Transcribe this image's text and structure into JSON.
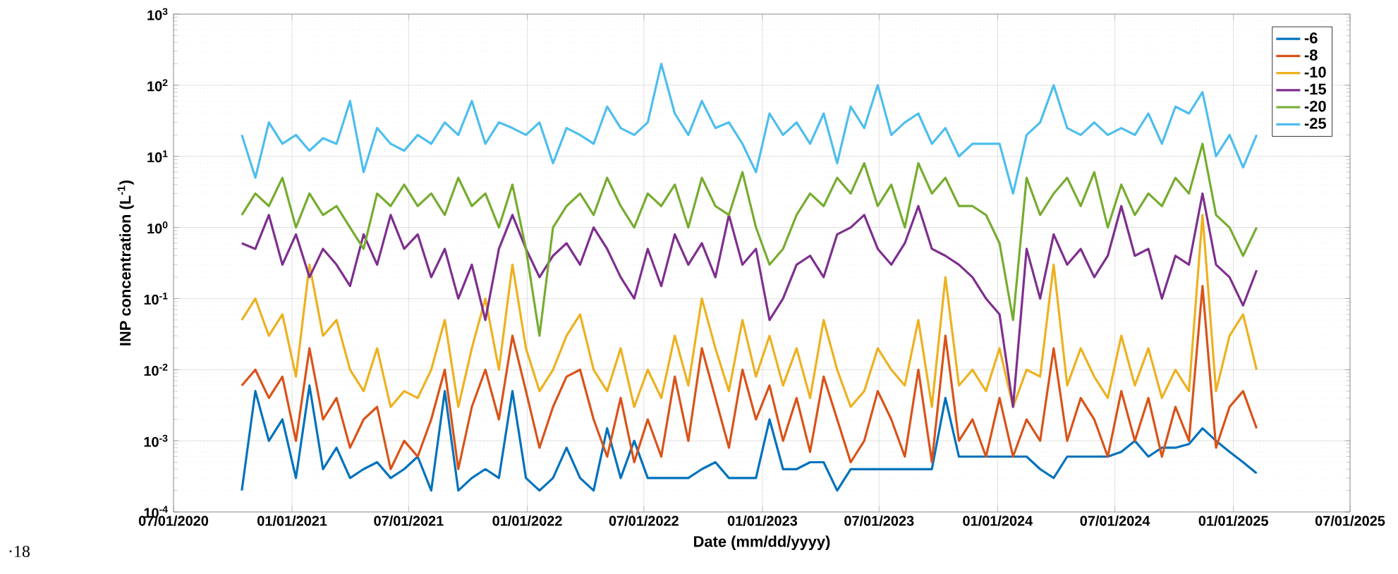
{
  "chart_data": {
    "type": "line",
    "xlabel": "Date (mm/dd/yyyy)",
    "ylabel": "INP concentration (L$^{-1}$)",
    "log": "y",
    "grid": true,
    "legend": "top right",
    "marker": "none",
    "line_style": "solid",
    "xlim": [
      "2020-07-01",
      "2025-07-01"
    ],
    "xticks": [
      {
        "value": "2020-07-01",
        "label": "07/01/2020"
      },
      {
        "value": "2021-01-01",
        "label": "01/01/2021"
      },
      {
        "value": "2021-07-01",
        "label": "07/01/2021"
      },
      {
        "value": "2022-01-01",
        "label": "01/01/2022"
      },
      {
        "value": "2022-07-01",
        "label": "07/01/2022"
      },
      {
        "value": "2023-01-01",
        "label": "01/01/2023"
      },
      {
        "value": "2023-07-01",
        "label": "07/01/2023"
      },
      {
        "value": "2024-01-01",
        "label": "01/01/2024"
      },
      {
        "value": "2024-07-01",
        "label": "07/01/2024"
      },
      {
        "value": "2025-01-01",
        "label": "01/01/2025"
      },
      {
        "value": "2025-07-01",
        "label": "07/01/2025"
      }
    ],
    "ylim": [
      0.0001,
      1000
    ],
    "yticks": [
      {
        "value": 0.0001,
        "label": "10$^{-4}$"
      },
      {
        "value": 0.001,
        "label": "10$^{-3}$"
      },
      {
        "value": 0.01,
        "label": "10$^{-2}$"
      },
      {
        "value": 0.1,
        "label": "10$^{-1}$"
      },
      {
        "value": 1,
        "label": "10$^{0}$"
      },
      {
        "value": 10,
        "label": "10$^{1}$"
      },
      {
        "value": 100,
        "label": "10$^{2}$"
      },
      {
        "value": 1000,
        "label": "10$^{3}$"
      }
    ],
    "annotations": [
      "·18"
    ],
    "x": [
      "2020-10-15",
      "2020-11-05",
      "2020-11-26",
      "2020-12-17",
      "2021-01-07",
      "2021-01-28",
      "2021-02-18",
      "2021-03-11",
      "2021-04-01",
      "2021-04-22",
      "2021-05-13",
      "2021-06-03",
      "2021-06-24",
      "2021-07-15",
      "2021-08-05",
      "2021-08-26",
      "2021-09-16",
      "2021-10-07",
      "2021-10-28",
      "2021-11-18",
      "2021-12-09",
      "2021-12-30",
      "2022-01-20",
      "2022-02-10",
      "2022-03-03",
      "2022-03-24",
      "2022-04-14",
      "2022-05-05",
      "2022-05-26",
      "2022-06-16",
      "2022-07-07",
      "2022-07-28",
      "2022-08-18",
      "2022-09-08",
      "2022-09-29",
      "2022-10-20",
      "2022-11-10",
      "2022-12-01",
      "2022-12-22",
      "2023-01-12",
      "2023-02-02",
      "2023-02-23",
      "2023-03-16",
      "2023-04-06",
      "2023-04-27",
      "2023-05-18",
      "2023-06-08",
      "2023-06-29",
      "2023-07-20",
      "2023-08-10",
      "2023-08-31",
      "2023-09-21",
      "2023-10-12",
      "2023-11-02",
      "2023-11-23",
      "2023-12-14",
      "2024-01-04",
      "2024-01-25",
      "2024-02-15",
      "2024-03-07",
      "2024-03-28",
      "2024-04-18",
      "2024-05-09",
      "2024-05-30",
      "2024-06-20",
      "2024-07-11",
      "2024-08-01",
      "2024-08-22",
      "2024-09-12",
      "2024-10-03",
      "2024-10-24",
      "2024-11-14",
      "2024-12-05",
      "2024-12-26",
      "2025-01-16",
      "2025-02-06"
    ],
    "series": [
      {
        "name": "-6",
        "color": "#0072bd",
        "values": [
          0.0002,
          0.005,
          0.001,
          0.002,
          0.0003,
          0.006,
          0.0004,
          0.0008,
          0.0003,
          0.0004,
          0.0005,
          0.0003,
          0.0004,
          0.0006,
          0.0002,
          0.005,
          0.0002,
          0.0003,
          0.0004,
          0.0003,
          0.005,
          0.0003,
          0.0002,
          0.0003,
          0.0008,
          0.0003,
          0.0002,
          0.0015,
          0.0003,
          0.001,
          0.0003,
          0.0003,
          0.0003,
          0.0003,
          0.0004,
          0.0005,
          0.0003,
          0.0003,
          0.0003,
          0.002,
          0.0004,
          0.0004,
          0.0005,
          0.0005,
          0.0002,
          0.0004,
          0.0004,
          0.0004,
          0.0004,
          0.0004,
          0.0004,
          0.0004,
          0.004,
          0.0006,
          0.0006,
          0.0006,
          0.0006,
          0.0006,
          0.0006,
          0.0004,
          0.0003,
          0.0006,
          0.0006,
          0.0006,
          0.0006,
          0.0007,
          0.001,
          0.0006,
          0.0008,
          0.0008,
          0.0009,
          0.0015,
          0.001,
          0.0007,
          0.0005,
          0.00035
        ]
      },
      {
        "name": "-8",
        "color": "#d95319",
        "values": [
          0.006,
          0.01,
          0.004,
          0.008,
          0.001,
          0.02,
          0.002,
          0.004,
          0.0008,
          0.002,
          0.003,
          0.0004,
          0.001,
          0.0006,
          0.002,
          0.01,
          0.0004,
          0.003,
          0.01,
          0.002,
          0.03,
          0.005,
          0.0008,
          0.003,
          0.008,
          0.01,
          0.002,
          0.0006,
          0.004,
          0.0005,
          0.002,
          0.0006,
          0.008,
          0.001,
          0.02,
          0.004,
          0.0008,
          0.01,
          0.002,
          0.006,
          0.001,
          0.004,
          0.0007,
          0.008,
          0.002,
          0.0005,
          0.001,
          0.005,
          0.002,
          0.0006,
          0.01,
          0.0005,
          0.03,
          0.001,
          0.002,
          0.0006,
          0.004,
          0.0006,
          0.002,
          0.001,
          0.02,
          0.001,
          0.004,
          0.002,
          0.0006,
          0.005,
          0.001,
          0.004,
          0.0006,
          0.003,
          0.001,
          0.15,
          0.0008,
          0.003,
          0.005,
          0.0015
        ]
      },
      {
        "name": "-10",
        "color": "#edb120",
        "values": [
          0.05,
          0.1,
          0.03,
          0.06,
          0.008,
          0.3,
          0.03,
          0.05,
          0.01,
          0.005,
          0.02,
          0.003,
          0.005,
          0.004,
          0.01,
          0.05,
          0.003,
          0.02,
          0.1,
          0.01,
          0.3,
          0.02,
          0.005,
          0.01,
          0.03,
          0.06,
          0.01,
          0.005,
          0.02,
          0.003,
          0.01,
          0.004,
          0.03,
          0.006,
          0.1,
          0.02,
          0.005,
          0.05,
          0.008,
          0.03,
          0.006,
          0.02,
          0.004,
          0.05,
          0.01,
          0.003,
          0.005,
          0.02,
          0.01,
          0.006,
          0.05,
          0.003,
          0.2,
          0.006,
          0.01,
          0.005,
          0.02,
          0.003,
          0.01,
          0.008,
          0.3,
          0.006,
          0.02,
          0.008,
          0.004,
          0.03,
          0.006,
          0.02,
          0.004,
          0.01,
          0.005,
          1.5,
          0.005,
          0.03,
          0.06,
          0.01
        ]
      },
      {
        "name": "-15",
        "color": "#7e2f8e",
        "values": [
          0.6,
          0.5,
          1.5,
          0.3,
          0.8,
          0.2,
          0.5,
          0.3,
          0.15,
          0.8,
          0.3,
          1.5,
          0.5,
          0.8,
          0.2,
          0.5,
          0.1,
          0.3,
          0.05,
          0.5,
          1.5,
          0.5,
          0.2,
          0.4,
          0.6,
          0.3,
          1,
          0.5,
          0.2,
          0.1,
          0.5,
          0.15,
          0.8,
          0.3,
          0.6,
          0.2,
          1.5,
          0.3,
          0.5,
          0.05,
          0.1,
          0.3,
          0.4,
          0.2,
          0.8,
          1,
          1.5,
          0.5,
          0.3,
          0.6,
          2,
          0.5,
          0.4,
          0.3,
          0.2,
          0.1,
          0.06,
          0.003,
          0.5,
          0.1,
          0.8,
          0.3,
          0.5,
          0.2,
          0.4,
          2,
          0.4,
          0.5,
          0.1,
          0.4,
          0.3,
          3,
          0.3,
          0.2,
          0.08,
          0.25
        ]
      },
      {
        "name": "-20",
        "color": "#77ac30",
        "values": [
          1.5,
          3,
          2,
          5,
          1,
          3,
          1.5,
          2,
          1,
          0.5,
          3,
          2,
          4,
          2,
          3,
          1.5,
          5,
          2,
          3,
          1,
          4,
          0.5,
          0.03,
          1,
          2,
          3,
          1.5,
          5,
          2,
          1,
          3,
          2,
          4,
          1,
          5,
          2,
          1.5,
          6,
          1,
          0.3,
          0.5,
          1.5,
          3,
          2,
          5,
          3,
          8,
          2,
          4,
          1,
          8,
          3,
          5,
          2,
          2,
          1.5,
          0.6,
          0.05,
          5,
          1.5,
          3,
          5,
          2,
          6,
          1,
          4,
          1.5,
          3,
          2,
          5,
          3,
          15,
          1.5,
          1,
          0.4,
          1
        ]
      },
      {
        "name": "-25",
        "color": "#4dbeee",
        "values": [
          20,
          5,
          30,
          15,
          20,
          12,
          18,
          15,
          60,
          6,
          25,
          15,
          12,
          20,
          15,
          30,
          20,
          60,
          15,
          30,
          25,
          20,
          30,
          8,
          25,
          20,
          15,
          50,
          25,
          20,
          30,
          200,
          40,
          20,
          60,
          25,
          30,
          15,
          6,
          40,
          20,
          30,
          15,
          40,
          8,
          50,
          25,
          100,
          20,
          30,
          40,
          15,
          25,
          10,
          15,
          15,
          15,
          3,
          20,
          30,
          100,
          25,
          20,
          30,
          20,
          25,
          20,
          40,
          15,
          50,
          40,
          80,
          10,
          20,
          7,
          20
        ]
      }
    ]
  }
}
